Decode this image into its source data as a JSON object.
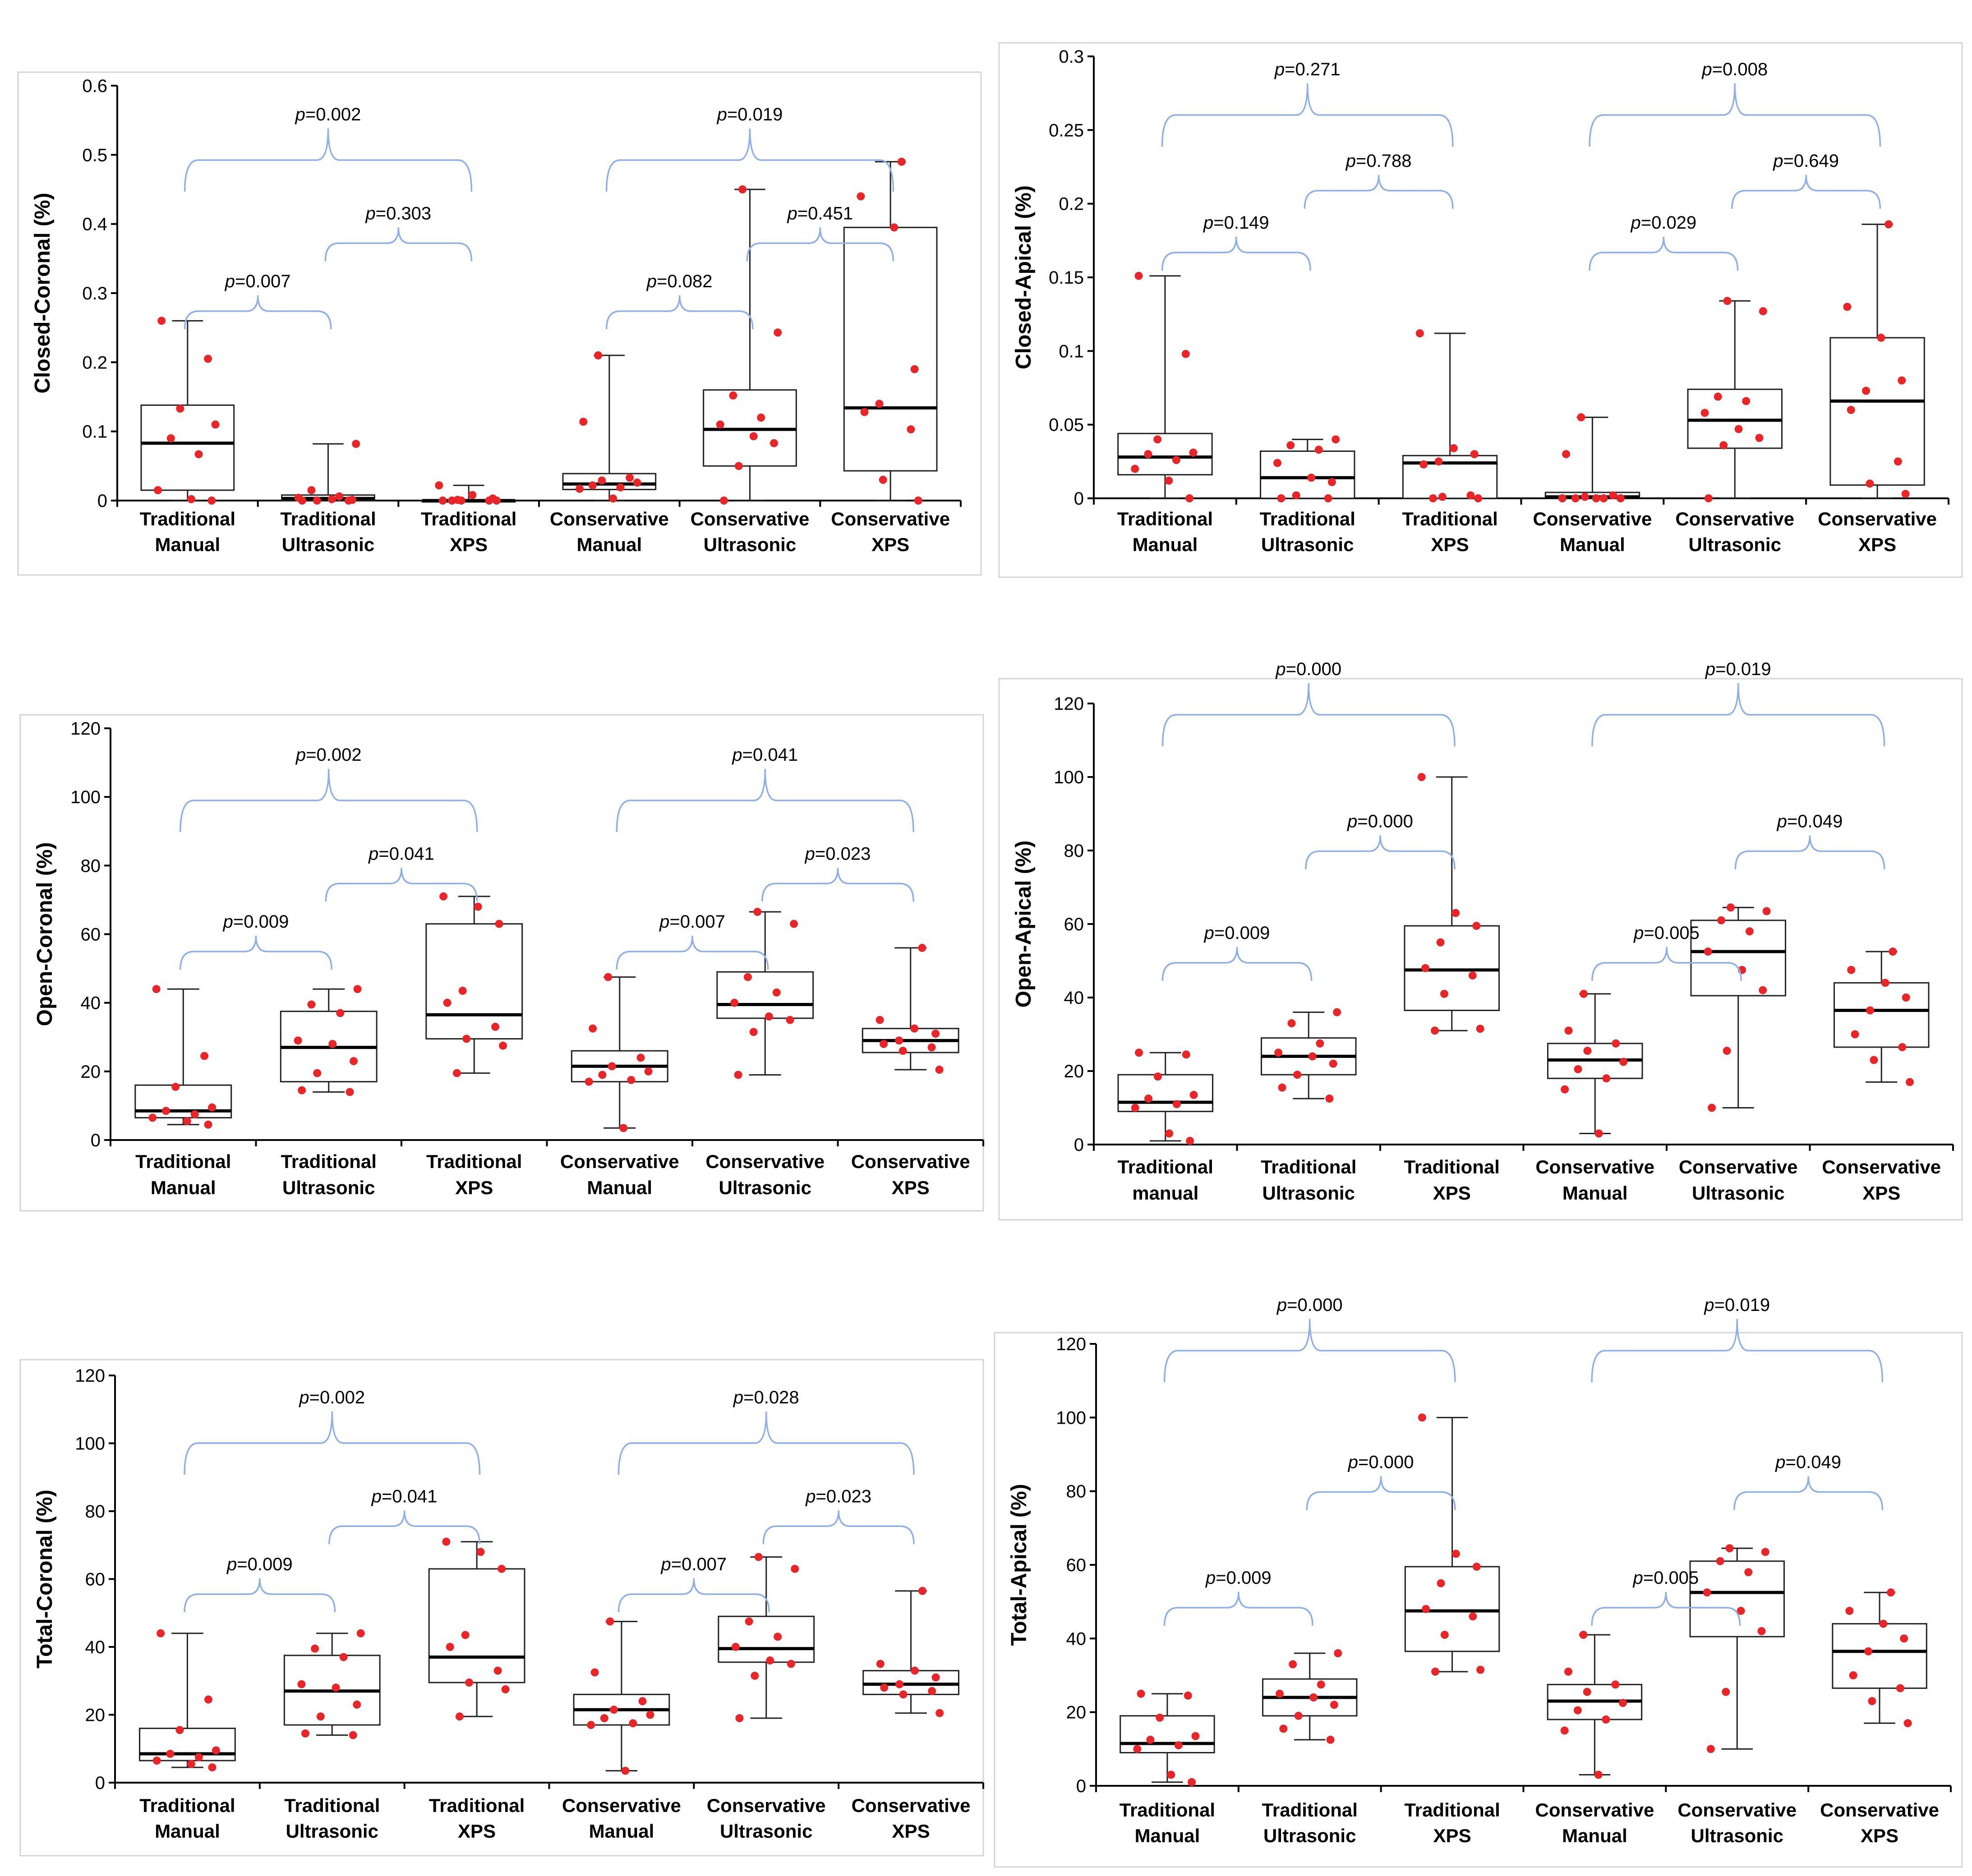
{
  "colors": {
    "point": "#e8262a",
    "bracket": "#8fb0e6",
    "box_stroke": "#222222",
    "median": "#000000",
    "axis": "#000000"
  },
  "chart_data": [
    {
      "type": "boxplot",
      "panel": "closed-coronal",
      "ylabel": "Closed-Coronal (%)",
      "ylim": [
        0,
        0.6
      ],
      "ticks": [
        "0",
        "0.1",
        "0.2",
        "0.3",
        "0.4",
        "0.5",
        "0.6"
      ],
      "groups": [
        {
          "label1": "Traditional",
          "label2": "Manual",
          "min": 0,
          "q1": 0.015,
          "median": 0.083,
          "q3": 0.138,
          "max": 0.26,
          "points": [
            0.26,
            0.205,
            0.133,
            0.11,
            0.09,
            0.067,
            0.015,
            0.002,
            0.0
          ]
        },
        {
          "label1": "Traditional",
          "label2": "Ultrasonic",
          "min": 0,
          "q1": 0.0,
          "median": 0.003,
          "q3": 0.008,
          "max": 0.082,
          "points": [
            0.082,
            0.015,
            0.006,
            0.004,
            0.002,
            0.001,
            0.0,
            0.0,
            0.0
          ]
        },
        {
          "label1": "Traditional",
          "label2": "XPS",
          "min": 0,
          "q1": 0.0,
          "median": 0.0,
          "q3": 0.0,
          "max": 0.022,
          "points": [
            0.022,
            0.008,
            0.003,
            0.001,
            0.0,
            0.0,
            0.0,
            0.0,
            0.0
          ]
        },
        {
          "label1": "Conservative",
          "label2": "Manual",
          "min": 0,
          "q1": 0.016,
          "median": 0.024,
          "q3": 0.039,
          "max": 0.21,
          "points": [
            0.21,
            0.114,
            0.033,
            0.029,
            0.026,
            0.022,
            0.019,
            0.017,
            0.003
          ]
        },
        {
          "label1": "Conservative",
          "label2": "Ultrasonic",
          "min": 0,
          "q1": 0.05,
          "median": 0.103,
          "q3": 0.16,
          "max": 0.45,
          "points": [
            0.45,
            0.243,
            0.152,
            0.12,
            0.11,
            0.093,
            0.083,
            0.05,
            0.0
          ]
        },
        {
          "label1": "Conservative",
          "label2": "XPS",
          "min": 0,
          "q1": 0.043,
          "median": 0.134,
          "q3": 0.395,
          "max": 0.49,
          "points": [
            0.49,
            0.44,
            0.395,
            0.19,
            0.14,
            0.128,
            0.103,
            0.03,
            0.0
          ]
        }
      ],
      "brackets": [
        {
          "from": 0,
          "to": 1,
          "text": "0.007"
        },
        {
          "from": 1,
          "to": 2,
          "text": "0.303"
        },
        {
          "from": 0,
          "to": 2,
          "text": "0.002"
        },
        {
          "from": 3,
          "to": 4,
          "text": "0.082"
        },
        {
          "from": 4,
          "to": 5,
          "text": "0.451"
        },
        {
          "from": 3,
          "to": 5,
          "text": "0.019"
        }
      ]
    },
    {
      "type": "boxplot",
      "panel": "closed-apical",
      "ylabel": "Closed-Apical (%)",
      "ylim": [
        0,
        0.3
      ],
      "ticks": [
        "0",
        "0.05",
        "0.1",
        "0.15",
        "0.2",
        "0.25",
        "0.3"
      ],
      "groups": [
        {
          "label1": "Traditional",
          "label2": "Manual",
          "min": 0,
          "q1": 0.016,
          "median": 0.028,
          "q3": 0.044,
          "max": 0.151,
          "points": [
            0.151,
            0.098,
            0.04,
            0.031,
            0.03,
            0.026,
            0.02,
            0.012,
            0.0
          ]
        },
        {
          "label1": "Traditional",
          "label2": "Ultrasonic",
          "min": 0,
          "q1": 0.0,
          "median": 0.014,
          "q3": 0.032,
          "max": 0.04,
          "points": [
            0.04,
            0.036,
            0.033,
            0.024,
            0.014,
            0.011,
            0.002,
            0.0,
            0.0
          ]
        },
        {
          "label1": "Traditional",
          "label2": "XPS",
          "min": 0,
          "q1": 0.0,
          "median": 0.024,
          "q3": 0.029,
          "max": 0.112,
          "points": [
            0.112,
            0.034,
            0.03,
            0.025,
            0.023,
            0.002,
            0.001,
            0.0,
            0.0
          ]
        },
        {
          "label1": "Conservative",
          "label2": "Manual",
          "min": 0,
          "q1": 0.0,
          "median": 0.001,
          "q3": 0.004,
          "max": 0.055,
          "points": [
            0.055,
            0.03,
            0.002,
            0.001,
            0.0,
            0.0,
            0.0,
            0.0,
            0.0
          ]
        },
        {
          "label1": "Conservative",
          "label2": "Ultrasonic",
          "min": 0,
          "q1": 0.034,
          "median": 0.053,
          "q3": 0.074,
          "max": 0.134,
          "points": [
            0.134,
            0.127,
            0.069,
            0.066,
            0.058,
            0.047,
            0.041,
            0.036,
            0.0
          ]
        },
        {
          "label1": "Conservative",
          "label2": "XPS",
          "min": 0,
          "q1": 0.009,
          "median": 0.066,
          "q3": 0.109,
          "max": 0.186,
          "points": [
            0.186,
            0.13,
            0.109,
            0.08,
            0.073,
            0.06,
            0.025,
            0.01,
            0.003
          ]
        }
      ],
      "brackets": [
        {
          "from": 0,
          "to": 1,
          "text": "0.149"
        },
        {
          "from": 1,
          "to": 2,
          "text": "0.788"
        },
        {
          "from": 0,
          "to": 2,
          "text": "0.271"
        },
        {
          "from": 3,
          "to": 4,
          "text": "0.029"
        },
        {
          "from": 4,
          "to": 5,
          "text": "0.649"
        },
        {
          "from": 3,
          "to": 5,
          "text": "0.008"
        }
      ]
    },
    {
      "type": "boxplot",
      "panel": "open-coronal",
      "ylabel": "Open-Coronal (%)",
      "ylim": [
        0,
        120
      ],
      "ticks": [
        "0",
        "20",
        "40",
        "60",
        "80",
        "100",
        "120"
      ],
      "groups": [
        {
          "label1": "Traditional",
          "label2": "Manual",
          "min": 4.5,
          "q1": 6.5,
          "median": 8.5,
          "q3": 16,
          "max": 44,
          "points": [
            44,
            24.5,
            15.5,
            9.5,
            8.5,
            7.5,
            6.5,
            5.5,
            4.5
          ]
        },
        {
          "label1": "Traditional",
          "label2": "Ultrasonic",
          "min": 14,
          "q1": 17,
          "median": 27,
          "q3": 37.5,
          "max": 44,
          "points": [
            44,
            39.5,
            37,
            29,
            28,
            23,
            19.5,
            14.5,
            14
          ]
        },
        {
          "label1": "Traditional",
          "label2": "XPS",
          "min": 19.5,
          "q1": 29.5,
          "median": 36.5,
          "q3": 63,
          "max": 71,
          "points": [
            71,
            68,
            63,
            43.5,
            40,
            33,
            29.5,
            27.5,
            19.5
          ]
        },
        {
          "label1": "Conservative",
          "label2": "Manual",
          "min": 3.5,
          "q1": 17,
          "median": 21.5,
          "q3": 26,
          "max": 47.5,
          "points": [
            47.5,
            32.5,
            24,
            21.5,
            20,
            19,
            17.5,
            17,
            3.5
          ]
        },
        {
          "label1": "Conservative",
          "label2": "Ultrasonic",
          "min": 19,
          "q1": 35.5,
          "median": 39.5,
          "q3": 49,
          "max": 66.5,
          "points": [
            66.5,
            63,
            47.5,
            43,
            40,
            36,
            35,
            31.5,
            19
          ]
        },
        {
          "label1": "Conservative",
          "label2": "XPS",
          "min": 20.5,
          "q1": 25.5,
          "median": 29,
          "q3": 32.5,
          "max": 56,
          "points": [
            56,
            35,
            32.5,
            31,
            29,
            28,
            27,
            26,
            20.5
          ]
        }
      ],
      "brackets": [
        {
          "from": 0,
          "to": 1,
          "text": "0.009"
        },
        {
          "from": 1,
          "to": 2,
          "text": "0.041"
        },
        {
          "from": 0,
          "to": 2,
          "text": "0.002"
        },
        {
          "from": 3,
          "to": 4,
          "text": "0.007"
        },
        {
          "from": 4,
          "to": 5,
          "text": "0.023"
        },
        {
          "from": 3,
          "to": 5,
          "text": "0.041"
        }
      ]
    },
    {
      "type": "boxplot",
      "panel": "open-apical",
      "ylabel": "Open-Apical (%)",
      "ylim": [
        0,
        120
      ],
      "ticks": [
        "0",
        "20",
        "40",
        "60",
        "80",
        "100",
        "120"
      ],
      "groups": [
        {
          "label1": "Traditional",
          "label2": "manual",
          "min": 1,
          "q1": 9,
          "median": 11.5,
          "q3": 19,
          "max": 25,
          "points": [
            25,
            24.5,
            18.5,
            13.5,
            12.5,
            11,
            10,
            3,
            1
          ]
        },
        {
          "label1": "Traditional",
          "label2": "Ultrasonic",
          "min": 12.5,
          "q1": 19,
          "median": 24,
          "q3": 29,
          "max": 36,
          "points": [
            36,
            33,
            27.5,
            25,
            24,
            22,
            19,
            15.5,
            12.5
          ]
        },
        {
          "label1": "Traditional",
          "label2": "XPS",
          "min": 31,
          "q1": 36.5,
          "median": 47.5,
          "q3": 59.5,
          "max": 100,
          "points": [
            100,
            63,
            59.5,
            55,
            48,
            46,
            41,
            31.5,
            31
          ]
        },
        {
          "label1": "Conservative",
          "label2": "Manual",
          "min": 3,
          "q1": 18,
          "median": 23,
          "q3": 27.5,
          "max": 41,
          "points": [
            41,
            31,
            27.5,
            25.5,
            22.5,
            20.5,
            18,
            15,
            3
          ]
        },
        {
          "label1": "Conservative",
          "label2": "Ultrasonic",
          "min": 10,
          "q1": 40.5,
          "median": 52.5,
          "q3": 61,
          "max": 64.5,
          "points": [
            64.5,
            63.5,
            61,
            58,
            52.5,
            47.5,
            42,
            25.5,
            10
          ]
        },
        {
          "label1": "Conservative",
          "label2": "XPS",
          "min": 17,
          "q1": 26.5,
          "median": 36.5,
          "q3": 44,
          "max": 52.5,
          "points": [
            52.5,
            47.5,
            44,
            40,
            36.5,
            30,
            26.5,
            23,
            17
          ]
        }
      ],
      "brackets": [
        {
          "from": 0,
          "to": 1,
          "text": "0.009"
        },
        {
          "from": 1,
          "to": 2,
          "text": "0.000"
        },
        {
          "from": 0,
          "to": 2,
          "text": "0.000"
        },
        {
          "from": 3,
          "to": 4,
          "text": "0.005"
        },
        {
          "from": 4,
          "to": 5,
          "text": "0.049"
        },
        {
          "from": 3,
          "to": 5,
          "text": "0.019"
        }
      ]
    },
    {
      "type": "boxplot",
      "panel": "total-coronal",
      "ylabel": "Total-Coronal (%)",
      "ylim": [
        0,
        120
      ],
      "ticks": [
        "0",
        "20",
        "40",
        "60",
        "80",
        "100",
        "120"
      ],
      "groups": [
        {
          "label1": "Traditional",
          "label2": "Manual",
          "min": 4.5,
          "q1": 6.5,
          "median": 8.5,
          "q3": 16,
          "max": 44,
          "points": [
            44,
            24.5,
            15.5,
            9.5,
            8.5,
            7.5,
            6.5,
            5.5,
            4.5
          ]
        },
        {
          "label1": "Traditional",
          "label2": "Ultrasonic",
          "min": 14,
          "q1": 17,
          "median": 27,
          "q3": 37.5,
          "max": 44,
          "points": [
            44,
            39.5,
            37,
            29,
            28,
            23,
            19.5,
            14.5,
            14
          ]
        },
        {
          "label1": "Traditional",
          "label2": "XPS",
          "min": 19.5,
          "q1": 29.5,
          "median": 37,
          "q3": 63,
          "max": 71,
          "points": [
            71,
            68,
            63,
            43.5,
            40,
            33,
            29.5,
            27.5,
            19.5
          ]
        },
        {
          "label1": "Conservative",
          "label2": "Manual",
          "min": 3.5,
          "q1": 17,
          "median": 21.5,
          "q3": 26,
          "max": 47.5,
          "points": [
            47.5,
            32.5,
            24,
            21.5,
            20,
            19,
            17.5,
            17,
            3.5
          ]
        },
        {
          "label1": "Conservative",
          "label2": "Ultrasonic",
          "min": 19,
          "q1": 35.5,
          "median": 39.5,
          "q3": 49,
          "max": 66.5,
          "points": [
            66.5,
            63,
            47.5,
            43,
            40,
            36,
            35,
            31.5,
            19
          ]
        },
        {
          "label1": "Conservative",
          "label2": "XPS",
          "min": 20.5,
          "q1": 26,
          "median": 29,
          "q3": 33,
          "max": 56.5,
          "points": [
            56.5,
            35,
            33,
            31,
            29,
            28,
            27,
            26,
            20.5
          ]
        }
      ],
      "brackets": [
        {
          "from": 0,
          "to": 1,
          "text": "0.009"
        },
        {
          "from": 1,
          "to": 2,
          "text": "0.041"
        },
        {
          "from": 0,
          "to": 2,
          "text": "0.002"
        },
        {
          "from": 3,
          "to": 4,
          "text": "0.007"
        },
        {
          "from": 4,
          "to": 5,
          "text": "0.023"
        },
        {
          "from": 3,
          "to": 5,
          "text": "0.028"
        }
      ]
    },
    {
      "type": "boxplot",
      "panel": "total-apical",
      "ylabel": "Total-Apical (%)",
      "ylim": [
        0,
        120
      ],
      "ticks": [
        "0",
        "20",
        "40",
        "60",
        "80",
        "100",
        "120"
      ],
      "groups": [
        {
          "label1": "Traditional",
          "label2": "Manual",
          "min": 1,
          "q1": 9,
          "median": 11.5,
          "q3": 19,
          "max": 25,
          "points": [
            25,
            24.5,
            18.5,
            13.5,
            12.5,
            11,
            10,
            3,
            1
          ]
        },
        {
          "label1": "Traditional",
          "label2": "Ultrasonic",
          "min": 12.5,
          "q1": 19,
          "median": 24,
          "q3": 29,
          "max": 36,
          "points": [
            36,
            33,
            27.5,
            25,
            24,
            22,
            19,
            15.5,
            12.5
          ]
        },
        {
          "label1": "Traditional",
          "label2": "XPS",
          "min": 31,
          "q1": 36.5,
          "median": 47.5,
          "q3": 59.5,
          "max": 100,
          "points": [
            100,
            63,
            59.5,
            55,
            48,
            46,
            41,
            31.5,
            31
          ]
        },
        {
          "label1": "Conservative",
          "label2": "Manual",
          "min": 3,
          "q1": 18,
          "median": 23,
          "q3": 27.5,
          "max": 41,
          "points": [
            41,
            31,
            27.5,
            25.5,
            22.5,
            20.5,
            18,
            15,
            3
          ]
        },
        {
          "label1": "Conservative",
          "label2": "Ultrasonic",
          "min": 10,
          "q1": 40.5,
          "median": 52.5,
          "q3": 61,
          "max": 64.5,
          "points": [
            64.5,
            63.5,
            61,
            58,
            52.5,
            47.5,
            42,
            25.5,
            10
          ]
        },
        {
          "label1": "Conservative",
          "label2": "XPS",
          "min": 17,
          "q1": 26.5,
          "median": 36.5,
          "q3": 44,
          "max": 52.5,
          "points": [
            52.5,
            47.5,
            44,
            40,
            36.5,
            30,
            26.5,
            23,
            17
          ]
        }
      ],
      "brackets": [
        {
          "from": 0,
          "to": 1,
          "text": "0.009"
        },
        {
          "from": 1,
          "to": 2,
          "text": "0.000"
        },
        {
          "from": 0,
          "to": 2,
          "text": "0.000"
        },
        {
          "from": 3,
          "to": 4,
          "text": "0.005"
        },
        {
          "from": 4,
          "to": 5,
          "text": "0.049"
        },
        {
          "from": 3,
          "to": 5,
          "text": "0.019"
        }
      ]
    }
  ]
}
